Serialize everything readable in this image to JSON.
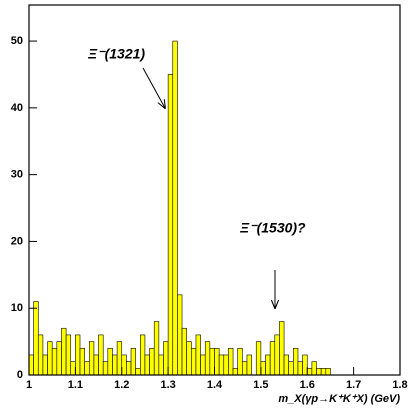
{
  "chart_data": {
    "type": "histogram",
    "xlabel": "m_X(γp→K⁺K⁺X) (GeV)",
    "annotations": [
      "Ξ⁻(1321)",
      "Ξ⁻(1530)?"
    ],
    "bins": [
      1.0,
      1.01,
      1.02,
      1.03,
      1.04,
      1.05,
      1.06,
      1.07,
      1.08,
      1.09,
      1.1,
      1.11,
      1.12,
      1.13,
      1.14,
      1.15,
      1.16,
      1.17,
      1.18,
      1.19,
      1.2,
      1.21,
      1.22,
      1.23,
      1.24,
      1.25,
      1.26,
      1.27,
      1.28,
      1.29,
      1.3,
      1.31,
      1.32,
      1.33,
      1.34,
      1.35,
      1.36,
      1.37,
      1.38,
      1.39,
      1.4,
      1.41,
      1.42,
      1.43,
      1.44,
      1.45,
      1.46,
      1.47,
      1.48,
      1.49,
      1.5,
      1.51,
      1.52,
      1.53,
      1.54,
      1.55,
      1.56,
      1.57,
      1.58,
      1.59,
      1.6,
      1.61,
      1.62,
      1.63,
      1.64,
      1.65
    ],
    "values": [
      3,
      11,
      6,
      3,
      5,
      4,
      5,
      7,
      6,
      2,
      6,
      4,
      2,
      5,
      3,
      6,
      2,
      4,
      3,
      5,
      3,
      2,
      4,
      1,
      6,
      3,
      4,
      8,
      3,
      5,
      45,
      50,
      12,
      7,
      5,
      4,
      6,
      3,
      5,
      4,
      4,
      3,
      3,
      4,
      1,
      4,
      2,
      3,
      0,
      5,
      2,
      3,
      5,
      6,
      8,
      3,
      2,
      4,
      2,
      3,
      1,
      2,
      1,
      1,
      1
    ],
    "color": "#ffff00",
    "xlim": [
      1.0,
      1.8
    ],
    "xticks": [
      1,
      1.1,
      1.2,
      1.3,
      1.4,
      1.5,
      1.6,
      1.7,
      1.8
    ],
    "ylim": [
      0,
      55.4
    ],
    "yticks": [
      0,
      10,
      20,
      30,
      40,
      50
    ]
  }
}
